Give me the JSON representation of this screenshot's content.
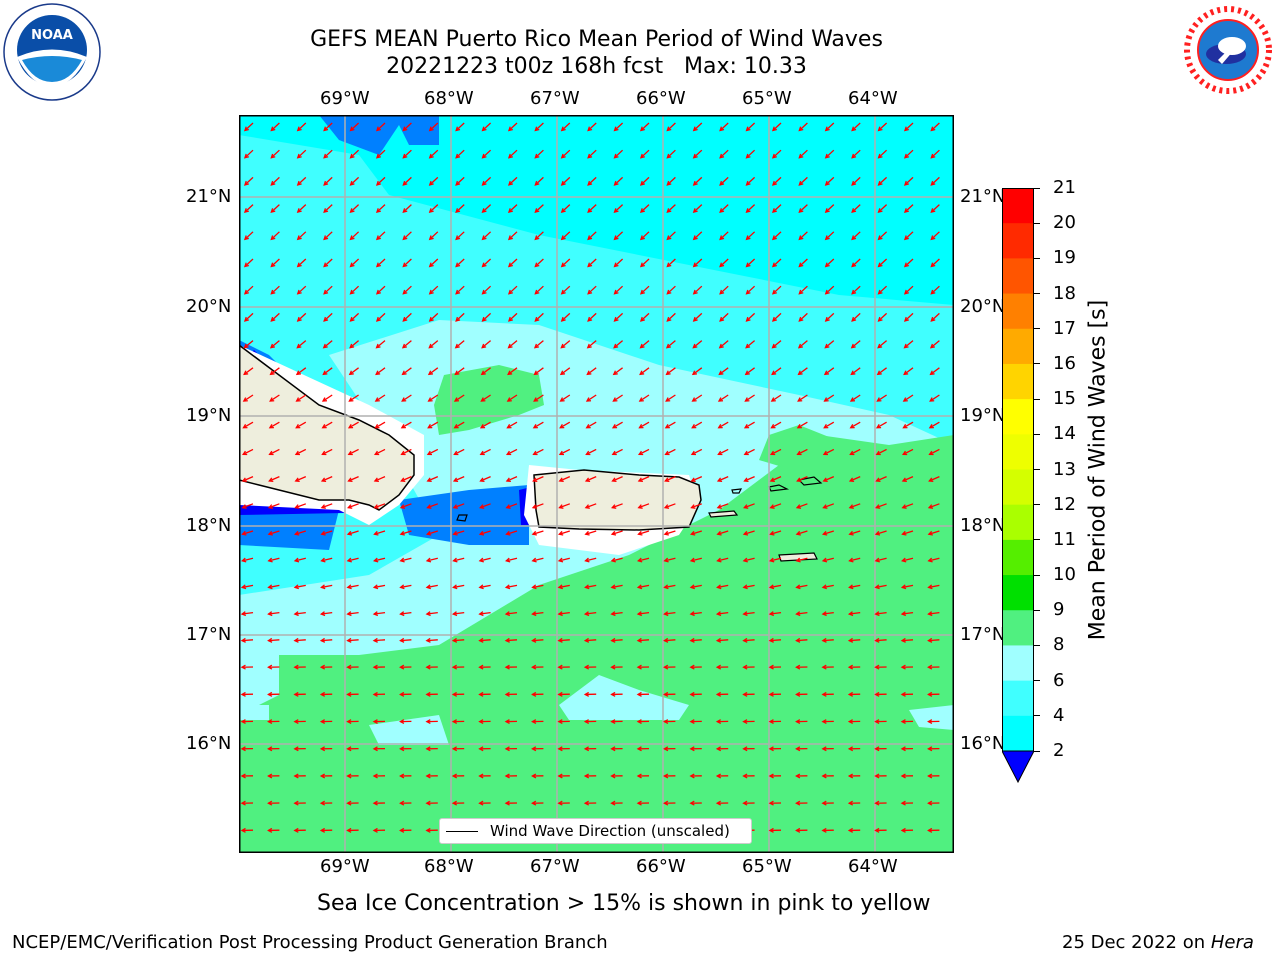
{
  "header": {
    "title_line1": "GEFS MEAN Puerto Rico Mean Period of Wind Waves",
    "title_line2": "20221223 t00z 168h fcst   Max: 10.33"
  },
  "logos": {
    "noaa": "NOAA",
    "nws": "NATIONAL WEATHER SERVICE"
  },
  "map": {
    "lon_labels": [
      "69°W",
      "68°W",
      "67°W",
      "66°W",
      "65°W",
      "64°W"
    ],
    "lat_labels": [
      "21°N",
      "20°N",
      "19°N",
      "18°N",
      "17°N",
      "16°N"
    ],
    "legend_label": "Wind Wave Direction (unscaled)",
    "arrow_color": "#ff0000",
    "land_color": "#eeeedd",
    "shading_levels": [
      {
        "range": "<2",
        "color": "#0000ff"
      },
      {
        "range": "2-4",
        "color": "#0080ff"
      },
      {
        "range": "4-6",
        "color": "#00ffff"
      },
      {
        "range": "6-8",
        "color": "#40ffff"
      },
      {
        "range": "8-9",
        "color": "#a0ffff"
      },
      {
        "range": "9-10",
        "color": "#50f080"
      },
      {
        "range": "10-11",
        "color": "#00e000"
      }
    ]
  },
  "colorbar": {
    "title": "Mean Period of Wind Waves [s]",
    "ticks": [
      "21",
      "20",
      "19",
      "18",
      "17",
      "16",
      "15",
      "14",
      "13",
      "12",
      "11",
      "10",
      "9",
      "8",
      "6",
      "4",
      "2"
    ],
    "colors": [
      "#ff0000",
      "#ff2a00",
      "#ff5500",
      "#ff8000",
      "#ffaa00",
      "#ffd400",
      "#ffff00",
      "#eeff00",
      "#d4ff00",
      "#aaff00",
      "#55ee00",
      "#00e000",
      "#50f080",
      "#a0ffff",
      "#40ffff",
      "#00ffff",
      "#0080ff"
    ],
    "under_color": "#0000ff"
  },
  "footer": {
    "note": "Sea Ice Concentration > 15% is shown in pink to yellow",
    "left": "NCEP/EMC/Verification Post Processing Product Generation Branch",
    "right_date": "25 Dec 2022 on ",
    "right_host": "Hera"
  }
}
